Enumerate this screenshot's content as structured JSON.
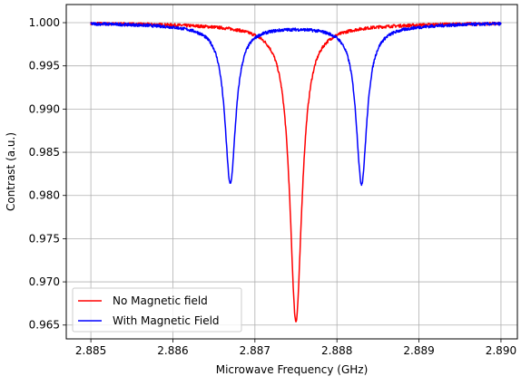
{
  "chart_data": {
    "type": "line",
    "title": "",
    "xlabel": "Microwave Frequency (GHz)",
    "ylabel": "Contrast (a.u.)",
    "xlim": [
      2.8847,
      2.8902
    ],
    "ylim": [
      0.9634,
      1.0021
    ],
    "xticks": [
      "2.885",
      "2.886",
      "2.887",
      "2.888",
      "2.889",
      "2.890"
    ],
    "yticks": [
      "1.000",
      "0.995",
      "0.990",
      "0.985",
      "0.980",
      "0.975",
      "0.970",
      "0.965"
    ],
    "grid": true,
    "legend": {
      "position": "lower-left"
    },
    "series": [
      {
        "name": "No Magnetic field",
        "color": "#ff0000",
        "model": {
          "baseline": 1.0,
          "dips": [
            {
              "center": 2.8875,
              "depth": 0.035,
              "hwhm": 9e-05,
              "wing": 0.0011
            }
          ]
        }
      },
      {
        "name": "With Magnetic Field",
        "color": "#0000ff",
        "model": {
          "baseline": 1.0,
          "dips": [
            {
              "center": 2.8867,
              "depth": 0.0185,
              "hwhm": 8e-05,
              "wing": 0.0008
            },
            {
              "center": 2.8883,
              "depth": 0.0185,
              "hwhm": 8e-05,
              "wing": 0.0008
            }
          ]
        }
      }
    ],
    "x_start": 2.885,
    "x_end": 2.89
  }
}
